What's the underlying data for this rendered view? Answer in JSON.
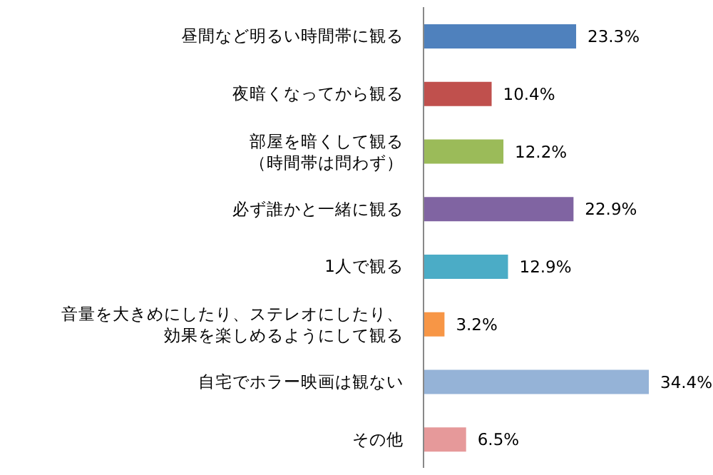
{
  "chart_data": {
    "type": "bar",
    "orientation": "horizontal",
    "categories": [
      "昼間など明るい時間帯に観る",
      "夜暗くなってから観る",
      "部屋を暗くして観る（時間帯は問わず）",
      "必ず誰かと一緒に観る",
      "1人で観る",
      "音量を大きめにしたり、ステレオにしたり、効果を楽しめるようにして観る",
      "自宅でホラー映画は観ない",
      "その他"
    ],
    "values": [
      23.3,
      10.4,
      12.2,
      22.9,
      12.9,
      3.2,
      34.4,
      6.5
    ],
    "value_labels": [
      "23.3%",
      "10.4%",
      "12.2%",
      "22.9%",
      "12.9%",
      "3.2%",
      "34.4%",
      "6.5%"
    ],
    "colors": [
      "#4f81bd",
      "#c0504d",
      "#9bbb59",
      "#8064a2",
      "#4bacc6",
      "#f79646",
      "#95b3d7",
      "#e6999a"
    ],
    "grid": false,
    "legend": false
  }
}
